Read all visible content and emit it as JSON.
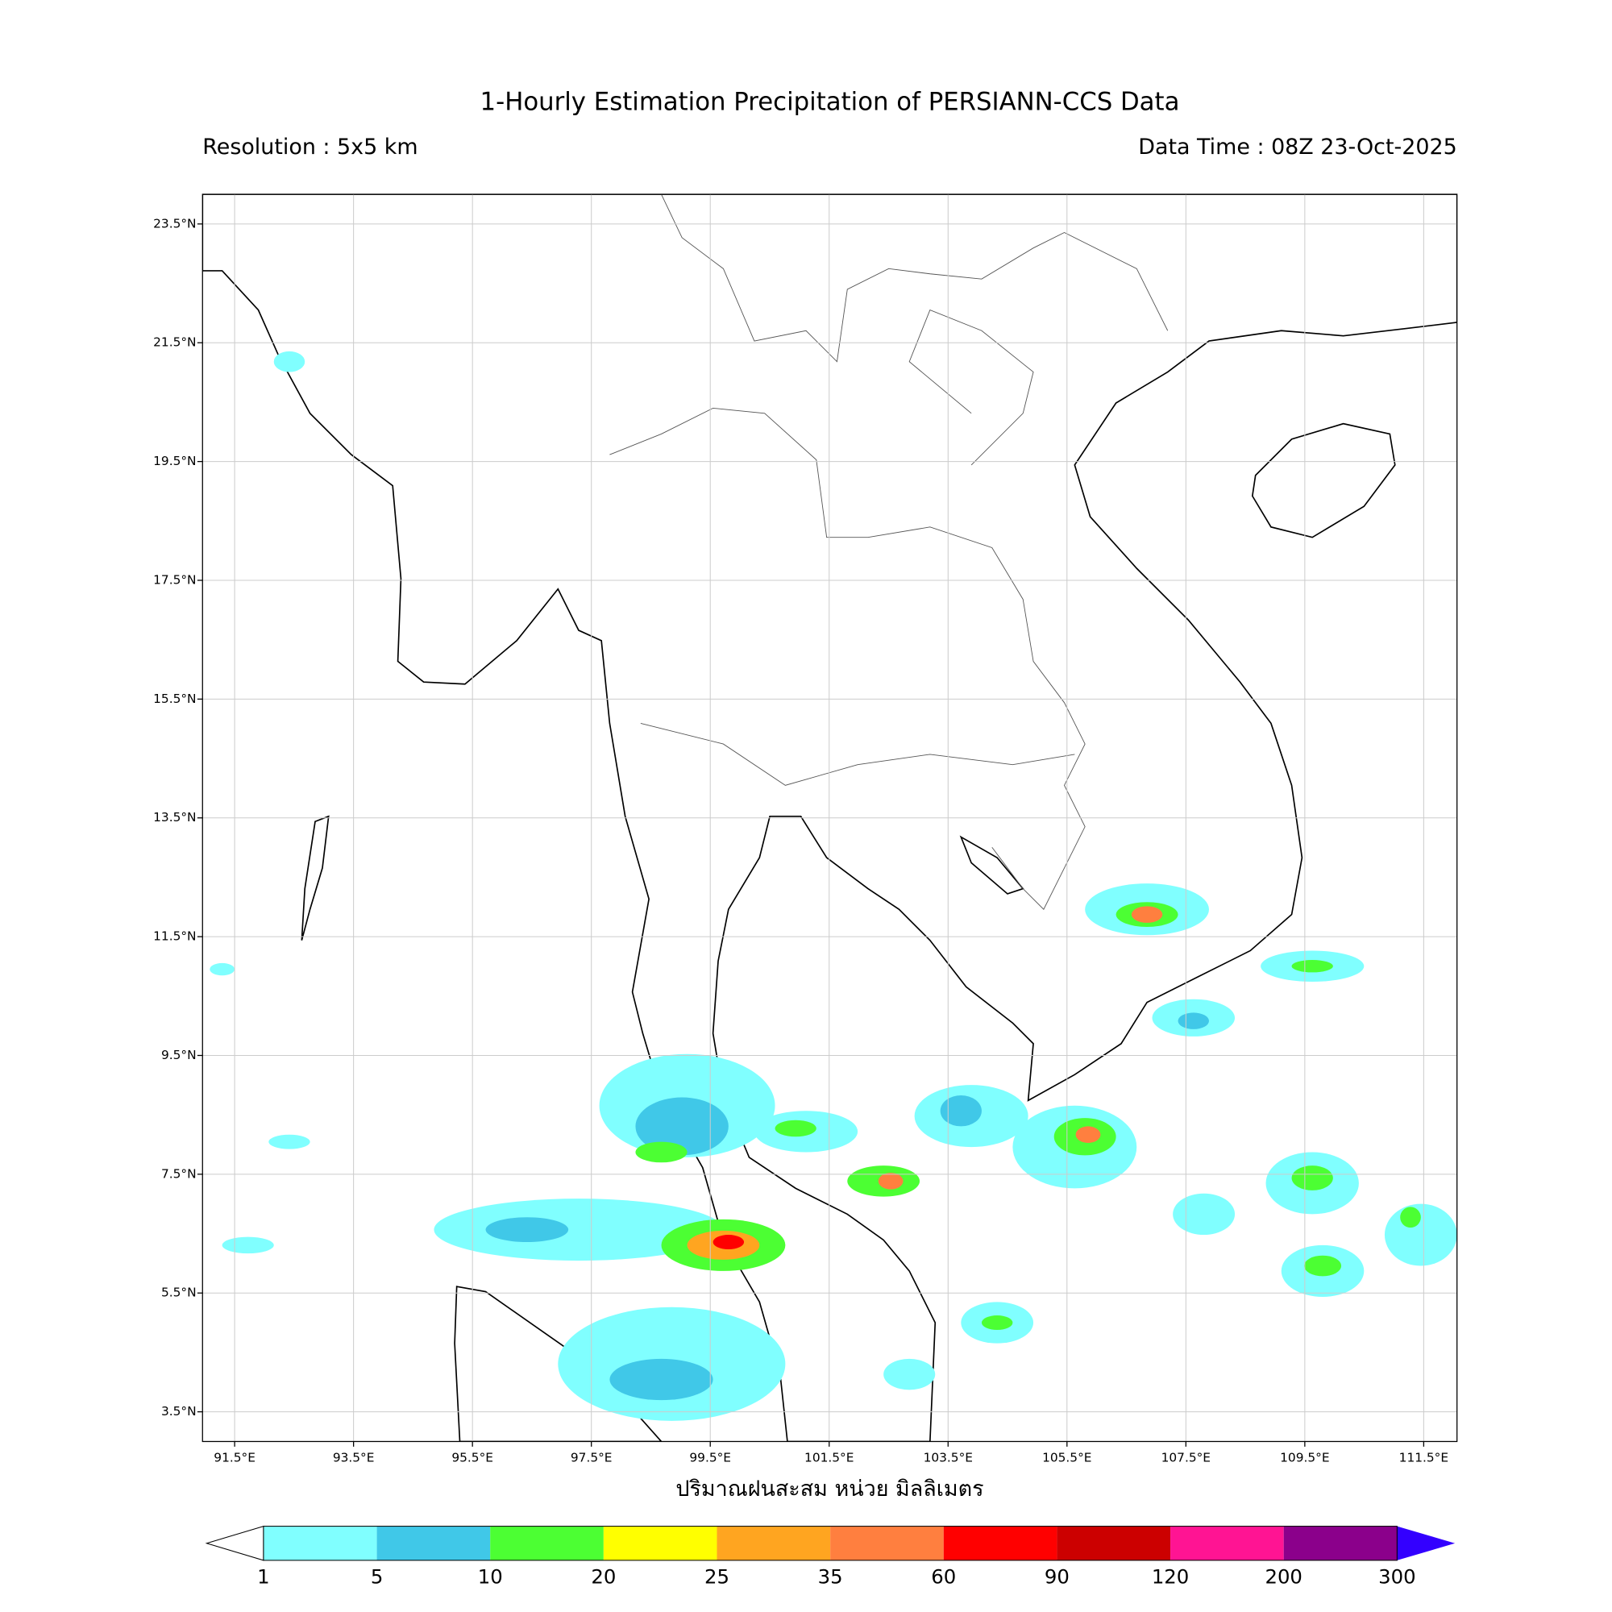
{
  "chart_data": {
    "type": "map",
    "title": "1-Hourly Estimation Precipitation of PERSIANN-CCS Data",
    "subtitle_left": "Resolution : 5x5 km",
    "subtitle_right": "Data Time : 08Z 23-Oct-2025",
    "xlabel": "ปริมาณฝนสะสม หน่วย มิลลิเมตร",
    "xlim": [
      90.96,
      112.06
    ],
    "ylim": [
      3.0,
      24.0
    ],
    "grid": true,
    "xticks": [
      {
        "value": 91.5,
        "label": "91.5°E"
      },
      {
        "value": 93.5,
        "label": "93.5°E"
      },
      {
        "value": 95.5,
        "label": "95.5°E"
      },
      {
        "value": 97.5,
        "label": "97.5°E"
      },
      {
        "value": 99.5,
        "label": "99.5°E"
      },
      {
        "value": 101.5,
        "label": "101.5°E"
      },
      {
        "value": 103.5,
        "label": "103.5°E"
      },
      {
        "value": 105.5,
        "label": "105.5°E"
      },
      {
        "value": 107.5,
        "label": "107.5°E"
      },
      {
        "value": 109.5,
        "label": "109.5°E"
      },
      {
        "value": 111.5,
        "label": "111.5°E"
      }
    ],
    "yticks": [
      {
        "value": 23.5,
        "label": "23.5°N"
      },
      {
        "value": 21.5,
        "label": "21.5°N"
      },
      {
        "value": 19.5,
        "label": "19.5°N"
      },
      {
        "value": 17.5,
        "label": "17.5°N"
      },
      {
        "value": 15.5,
        "label": "15.5°N"
      },
      {
        "value": 13.5,
        "label": "13.5°N"
      },
      {
        "value": 11.5,
        "label": "11.5°N"
      },
      {
        "value": 9.5,
        "label": "9.5°N"
      },
      {
        "value": 7.5,
        "label": "7.5°N"
      },
      {
        "value": 5.5,
        "label": "5.5°N"
      },
      {
        "value": 3.5,
        "label": "3.5°N"
      }
    ],
    "colorbar": {
      "boundaries": [
        1,
        5,
        10,
        20,
        25,
        35,
        60,
        90,
        120,
        200,
        300
      ],
      "colors": [
        "#80ffff",
        "#40c8e8",
        "#4cff33",
        "#ffff00",
        "#ffa520",
        "#ff7f3f",
        "#ff0000",
        "#cc0000",
        "#ff1493",
        "#8b008b"
      ],
      "extend_color": "#3300ff"
    }
  }
}
